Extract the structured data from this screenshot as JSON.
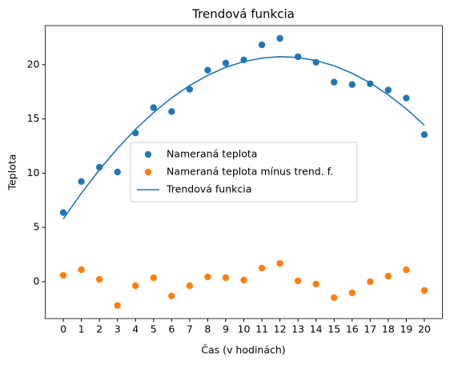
{
  "chart_data": {
    "type": "scatter",
    "title": "Trendová funkcia",
    "x_label": "Čas (v hodinách)",
    "y_label": "Teplota",
    "x": [
      0,
      1,
      2,
      3,
      4,
      5,
      6,
      7,
      8,
      9,
      10,
      11,
      12,
      13,
      14,
      15,
      16,
      17,
      18,
      19,
      20
    ],
    "series": [
      {
        "name": "Nameraná teplota",
        "type": "scatter",
        "color": "#1f77b4",
        "values": [
          6.37,
          9.23,
          10.55,
          10.11,
          13.7,
          16.04,
          15.68,
          17.73,
          19.49,
          20.15,
          20.44,
          21.83,
          22.42,
          20.73,
          20.22,
          18.39,
          18.17,
          18.24,
          17.66,
          16.92,
          13.55
        ]
      },
      {
        "name": "Nameraná teplota mínus trend. f.",
        "type": "scatter",
        "color": "#ff7f0e",
        "values": [
          0.59,
          1.1,
          0.22,
          -2.2,
          -0.37,
          0.37,
          -1.32,
          -0.37,
          0.44,
          0.37,
          0.15,
          1.25,
          1.68,
          0.07,
          -0.22,
          -1.47,
          -1.03,
          0,
          0.51,
          1.1,
          -0.81
        ]
      },
      {
        "name": "Trendová funkcia",
        "type": "line",
        "color": "#1f77b4",
        "values": [
          5.78,
          8.15,
          10.32,
          12.28,
          14.04,
          15.59,
          16.94,
          18.08,
          19.02,
          19.76,
          20.29,
          20.61,
          20.74,
          20.66,
          20.38,
          19.9,
          19.21,
          18.32,
          17.22,
          15.93,
          14.42
        ]
      }
    ],
    "xlim": [
      -1,
      21
    ],
    "xticks": [
      0,
      1,
      2,
      3,
      4,
      5,
      6,
      7,
      8,
      9,
      10,
      11,
      12,
      13,
      14,
      15,
      16,
      17,
      18,
      19,
      20
    ],
    "ylim": [
      -3.4,
      23.6
    ],
    "yticks": [
      0,
      5,
      10,
      15,
      20
    ],
    "legend": "center"
  }
}
